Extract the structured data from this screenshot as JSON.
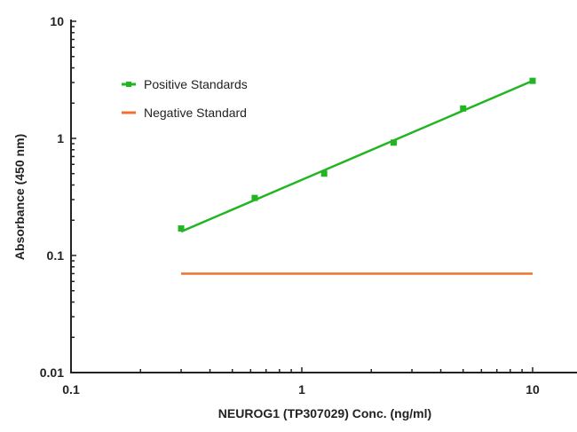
{
  "chart_data": {
    "type": "line",
    "title": "",
    "xlabel": "NEUROG1 (TP307029) Conc. (ng/ml)",
    "ylabel": "Absorbance (450 nm)",
    "xscale": "log",
    "yscale": "log",
    "xlim": [
      0.1,
      20
    ],
    "ylim": [
      0.01,
      10
    ],
    "x_ticks": [
      "0.1",
      "1",
      "10"
    ],
    "y_ticks": [
      "0.01",
      "0.1",
      "1",
      "10"
    ],
    "grid": false,
    "legend_position": "upper-left",
    "series": [
      {
        "name": "Positive Standards",
        "color": "#22b522",
        "marker": "square",
        "x": [
          0.3,
          0.625,
          1.25,
          2.5,
          5,
          10
        ],
        "values": [
          0.17,
          0.31,
          0.5,
          0.92,
          1.8,
          3.1
        ],
        "fit_line": {
          "x": [
            0.3,
            10
          ],
          "y": [
            0.16,
            3.1
          ]
        }
      },
      {
        "name": "Negative Standard",
        "color": "#f07030",
        "marker": "none",
        "x": [
          0.3,
          10
        ],
        "values": [
          0.07,
          0.07
        ]
      }
    ]
  },
  "axes": {
    "x_title": "NEUROG1 (TP307029) Conc. (ng/ml)",
    "y_title": "Absorbance (450 nm)",
    "x_tick_labels": [
      "0.1",
      "1",
      "10"
    ],
    "y_tick_labels": [
      "0.01",
      "0.1",
      "1",
      "10"
    ]
  },
  "legend": {
    "items": [
      {
        "label": "Positive Standards",
        "color": "#22b522"
      },
      {
        "label": "Negative Standard",
        "color": "#f07030"
      }
    ]
  }
}
